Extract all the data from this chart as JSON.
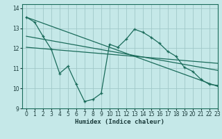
{
  "title": "",
  "xlabel": "Humidex (Indice chaleur)",
  "bg_color": "#c5e8e8",
  "grid_color": "#a0c8c8",
  "line_color": "#1a6b5a",
  "xlim": [
    -0.5,
    23
  ],
  "ylim": [
    9,
    14.2
  ],
  "xticks": [
    0,
    1,
    2,
    3,
    4,
    5,
    6,
    7,
    8,
    9,
    10,
    11,
    12,
    13,
    14,
    15,
    16,
    17,
    18,
    19,
    20,
    21,
    22,
    23
  ],
  "yticks": [
    9,
    10,
    11,
    12,
    13,
    14
  ],
  "main_line_x": [
    0,
    1,
    2,
    3,
    4,
    5,
    6,
    7,
    8,
    9,
    10,
    11,
    12,
    13,
    14,
    15,
    16,
    17,
    18,
    19,
    20,
    21,
    22,
    23
  ],
  "main_line_y": [
    13.55,
    13.3,
    12.6,
    11.95,
    10.75,
    11.1,
    10.2,
    9.35,
    9.45,
    9.75,
    12.2,
    12.05,
    12.45,
    12.95,
    12.8,
    12.55,
    12.25,
    11.85,
    11.6,
    11.05,
    10.85,
    10.45,
    10.2,
    10.15
  ],
  "reg_line1_x": [
    0,
    23
  ],
  "reg_line1_y": [
    13.55,
    10.1
  ],
  "reg_line2_x": [
    0,
    23
  ],
  "reg_line2_y": [
    12.6,
    10.9
  ],
  "reg_line3_x": [
    0,
    23
  ],
  "reg_line3_y": [
    12.05,
    11.25
  ]
}
